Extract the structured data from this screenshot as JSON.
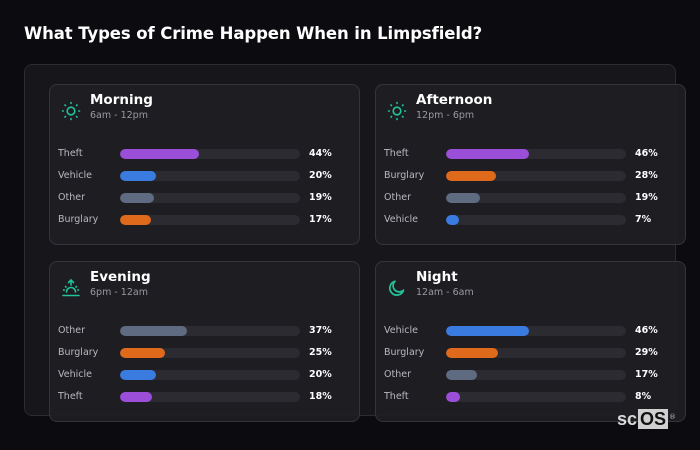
{
  "page": {
    "title": "What Types of Crime Happen When in Limpsfield?"
  },
  "colors": {
    "Theft": "#9b4fd9",
    "Vehicle": "#3a7be0",
    "Other": "#5f6b80",
    "Burglary": "#e06a1c",
    "icon": "#22c39a",
    "track": "#2c2b31"
  },
  "cards": [
    {
      "title": "Morning",
      "subtitle": "6am - 12pm",
      "icon": "sun-icon",
      "rows": [
        {
          "label": "Theft",
          "value": 44,
          "display": "44%"
        },
        {
          "label": "Vehicle",
          "value": 20,
          "display": "20%"
        },
        {
          "label": "Other",
          "value": 19,
          "display": "19%"
        },
        {
          "label": "Burglary",
          "value": 17,
          "display": "17%"
        }
      ]
    },
    {
      "title": "Afternoon",
      "subtitle": "12pm - 6pm",
      "icon": "sun-icon",
      "rows": [
        {
          "label": "Theft",
          "value": 46,
          "display": "46%"
        },
        {
          "label": "Burglary",
          "value": 28,
          "display": "28%"
        },
        {
          "label": "Other",
          "value": 19,
          "display": "19%"
        },
        {
          "label": "Vehicle",
          "value": 7,
          "display": "7%"
        }
      ]
    },
    {
      "title": "Evening",
      "subtitle": "6pm - 12am",
      "icon": "sunset-icon",
      "rows": [
        {
          "label": "Other",
          "value": 37,
          "display": "37%"
        },
        {
          "label": "Burglary",
          "value": 25,
          "display": "25%"
        },
        {
          "label": "Vehicle",
          "value": 20,
          "display": "20%"
        },
        {
          "label": "Theft",
          "value": 18,
          "display": "18%"
        }
      ]
    },
    {
      "title": "Night",
      "subtitle": "12am - 6am",
      "icon": "moon-icon",
      "rows": [
        {
          "label": "Vehicle",
          "value": 46,
          "display": "46%"
        },
        {
          "label": "Burglary",
          "value": 29,
          "display": "29%"
        },
        {
          "label": "Other",
          "value": 17,
          "display": "17%"
        },
        {
          "label": "Theft",
          "value": 8,
          "display": "8%"
        }
      ]
    }
  ],
  "logo": {
    "sc": "sc",
    "os": "OS",
    "reg": "®"
  },
  "chart_data": {
    "type": "bar",
    "orientation": "horizontal",
    "title": "What Types of Crime Happen When in Limpsfield?",
    "unit": "%",
    "xlim": [
      0,
      100
    ],
    "grid": false,
    "legend": "none",
    "panels": [
      {
        "title": "Morning",
        "subtitle": "6am - 12pm",
        "categories": [
          "Theft",
          "Vehicle",
          "Other",
          "Burglary"
        ],
        "values": [
          44,
          20,
          19,
          17
        ]
      },
      {
        "title": "Afternoon",
        "subtitle": "12pm - 6pm",
        "categories": [
          "Theft",
          "Burglary",
          "Other",
          "Vehicle"
        ],
        "values": [
          46,
          28,
          19,
          7
        ]
      },
      {
        "title": "Evening",
        "subtitle": "6pm - 12am",
        "categories": [
          "Other",
          "Burglary",
          "Vehicle",
          "Theft"
        ],
        "values": [
          37,
          25,
          20,
          18
        ]
      },
      {
        "title": "Night",
        "subtitle": "12am - 6am",
        "categories": [
          "Vehicle",
          "Burglary",
          "Other",
          "Theft"
        ],
        "values": [
          46,
          29,
          17,
          8
        ]
      }
    ],
    "series_colors": {
      "Theft": "#9b4fd9",
      "Vehicle": "#3a7be0",
      "Other": "#5f6b80",
      "Burglary": "#e06a1c"
    }
  }
}
